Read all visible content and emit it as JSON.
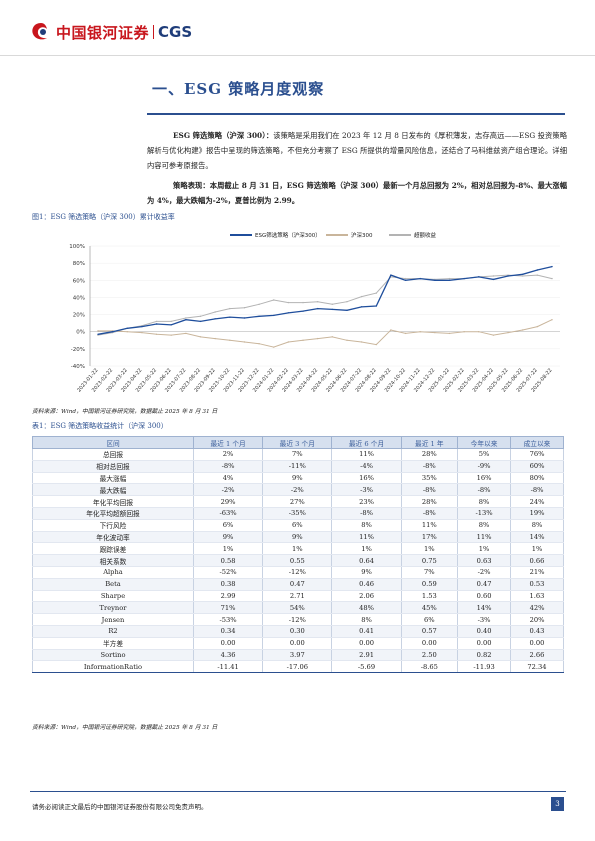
{
  "header": {
    "brand_cn": "中国银河证券",
    "brand_en": "CGS",
    "logo_color": "#c8161d",
    "accent": "#2b4f8f"
  },
  "section": {
    "title": "一、ESG 策略月度观察"
  },
  "paragraphs": [
    {
      "lead": "ESG 筛选策略（沪深 300）：",
      "text": "该策略是采用我们在 2023 年 12 月 8 日发布的《厚积薄发，志存高远——ESG 投资策略解析与优化构建》报告中呈现的筛选策略，不但充分考察了 ESG 所提供的增量风险信息，还结合了马科维兹资产组合理论。详细内容可参考原报告。"
    },
    {
      "lead": "策略表现：",
      "text": "本周截止 8 月 31 日，ESG 筛选策略（沪深 300）最新一个月总回报为 2%，相对总回报为-8%、最大涨幅为 4%，最大跌幅为-2%，夏普比例为 2.99。"
    }
  ],
  "figure": {
    "caption": "图1：ESG 筛选策略（沪深 300）累计收益率",
    "source": "资料来源：Wind，中国银河证券研究院，数据截止 2025 年 8 月 31 日"
  },
  "chart_data": {
    "type": "line",
    "title": "",
    "ylim": [
      -40,
      100
    ],
    "yticks": [
      "100%",
      "80%",
      "60%",
      "40%",
      "20%",
      "0%",
      "-20%",
      "-40%"
    ],
    "x": [
      "2023-01-22",
      "2023-02-22",
      "2023-03-22",
      "2023-04-22",
      "2023-05-22",
      "2023-06-22",
      "2023-07-22",
      "2023-08-22",
      "2023-09-22",
      "2023-10-22",
      "2023-11-22",
      "2023-12-22",
      "2024-01-22",
      "2024-02-22",
      "2024-03-22",
      "2024-04-22",
      "2024-05-22",
      "2024-06-22",
      "2024-07-22",
      "2024-08-22",
      "2024-09-22",
      "2024-10-22",
      "2024-11-22",
      "2024-12-22",
      "2025-01-22",
      "2025-02-22",
      "2025-03-22",
      "2025-04-22",
      "2025-05-22",
      "2025-06-22",
      "2025-07-22",
      "2025-08-22"
    ],
    "series": [
      {
        "name": "ESG筛选策略（沪深300）",
        "color": "#1f4e9c",
        "values": [
          -3,
          0,
          4,
          6,
          9,
          8,
          14,
          12,
          15,
          17,
          16,
          18,
          19,
          22,
          24,
          27,
          26,
          25,
          29,
          30,
          66,
          60,
          62,
          60,
          60,
          62,
          64,
          61,
          65,
          67,
          72,
          76
        ]
      },
      {
        "name": "沪深300",
        "color": "#c9b59b",
        "values": [
          1,
          1,
          0,
          -1,
          -3,
          -4,
          -2,
          -6,
          -8,
          -10,
          -12,
          -14,
          -18,
          -12,
          -10,
          -8,
          -6,
          -10,
          -12,
          -15,
          2,
          -2,
          0,
          -1,
          -2,
          0,
          0,
          -4,
          -1,
          2,
          6,
          14
        ]
      },
      {
        "name": "超额收益",
        "color": "#b3b3b3",
        "values": [
          -4,
          -1,
          4,
          7,
          12,
          12,
          16,
          18,
          23,
          27,
          28,
          32,
          37,
          34,
          34,
          35,
          32,
          35,
          41,
          45,
          64,
          62,
          62,
          61,
          62,
          62,
          64,
          65,
          66,
          65,
          66,
          62
        ]
      }
    ]
  },
  "table": {
    "caption": "表1：ESG 筛选策略收益统计（沪深 300）",
    "source": "资料来源：Wind，中国银河证券研究院，数据截止 2025 年 8 月 31 日",
    "headers": [
      "区间",
      "最近 1 个月",
      "最近 3 个月",
      "最近 6 个月",
      "最近 1 年",
      "今年以来",
      "成立以来"
    ],
    "rows": [
      [
        "总回报",
        "2%",
        "7%",
        "11%",
        "28%",
        "5%",
        "76%"
      ],
      [
        "相对总回报",
        "-8%",
        "-11%",
        "-4%",
        "-8%",
        "-9%",
        "60%"
      ],
      [
        "最大涨幅",
        "4%",
        "9%",
        "16%",
        "35%",
        "16%",
        "80%"
      ],
      [
        "最大跌幅",
        "-2%",
        "-2%",
        "-3%",
        "-8%",
        "-8%",
        "-8%"
      ],
      [
        "年化平均回报",
        "29%",
        "27%",
        "23%",
        "28%",
        "8%",
        "24%"
      ],
      [
        "年化平均超额回报",
        "-63%",
        "-35%",
        "-8%",
        "-8%",
        "-13%",
        "19%"
      ],
      [
        "下行风险",
        "6%",
        "6%",
        "8%",
        "11%",
        "8%",
        "8%"
      ],
      [
        "年化波动率",
        "9%",
        "9%",
        "11%",
        "17%",
        "11%",
        "14%"
      ],
      [
        "跟踪误差",
        "1%",
        "1%",
        "1%",
        "1%",
        "1%",
        "1%"
      ],
      [
        "相关系数",
        "0.58",
        "0.55",
        "0.64",
        "0.75",
        "0.63",
        "0.66"
      ],
      [
        "Alpha",
        "-52%",
        "-12%",
        "9%",
        "7%",
        "-2%",
        "21%"
      ],
      [
        "Beta",
        "0.38",
        "0.47",
        "0.46",
        "0.59",
        "0.47",
        "0.53"
      ],
      [
        "Sharpe",
        "2.99",
        "2.71",
        "2.06",
        "1.53",
        "0.60",
        "1.63"
      ],
      [
        "Treynor",
        "71%",
        "54%",
        "48%",
        "45%",
        "14%",
        "42%"
      ],
      [
        "Jensen",
        "-53%",
        "-12%",
        "8%",
        "6%",
        "-3%",
        "20%"
      ],
      [
        "R2",
        "0.34",
        "0.30",
        "0.41",
        "0.57",
        "0.40",
        "0.43"
      ],
      [
        "半方差",
        "0.00",
        "0.00",
        "0.00",
        "0.00",
        "0.00",
        "0.00"
      ],
      [
        "Sortino",
        "4.36",
        "3.97",
        "2.91",
        "2.50",
        "0.82",
        "2.66"
      ],
      [
        "InformationRatio",
        "-11.41",
        "-17.06",
        "-5.69",
        "-8.65",
        "-11.93",
        "72.34"
      ]
    ]
  },
  "footer": {
    "disclaimer": "请务必阅读正文最后的中国银河证券股份有限公司免责声明。",
    "page": "3"
  }
}
